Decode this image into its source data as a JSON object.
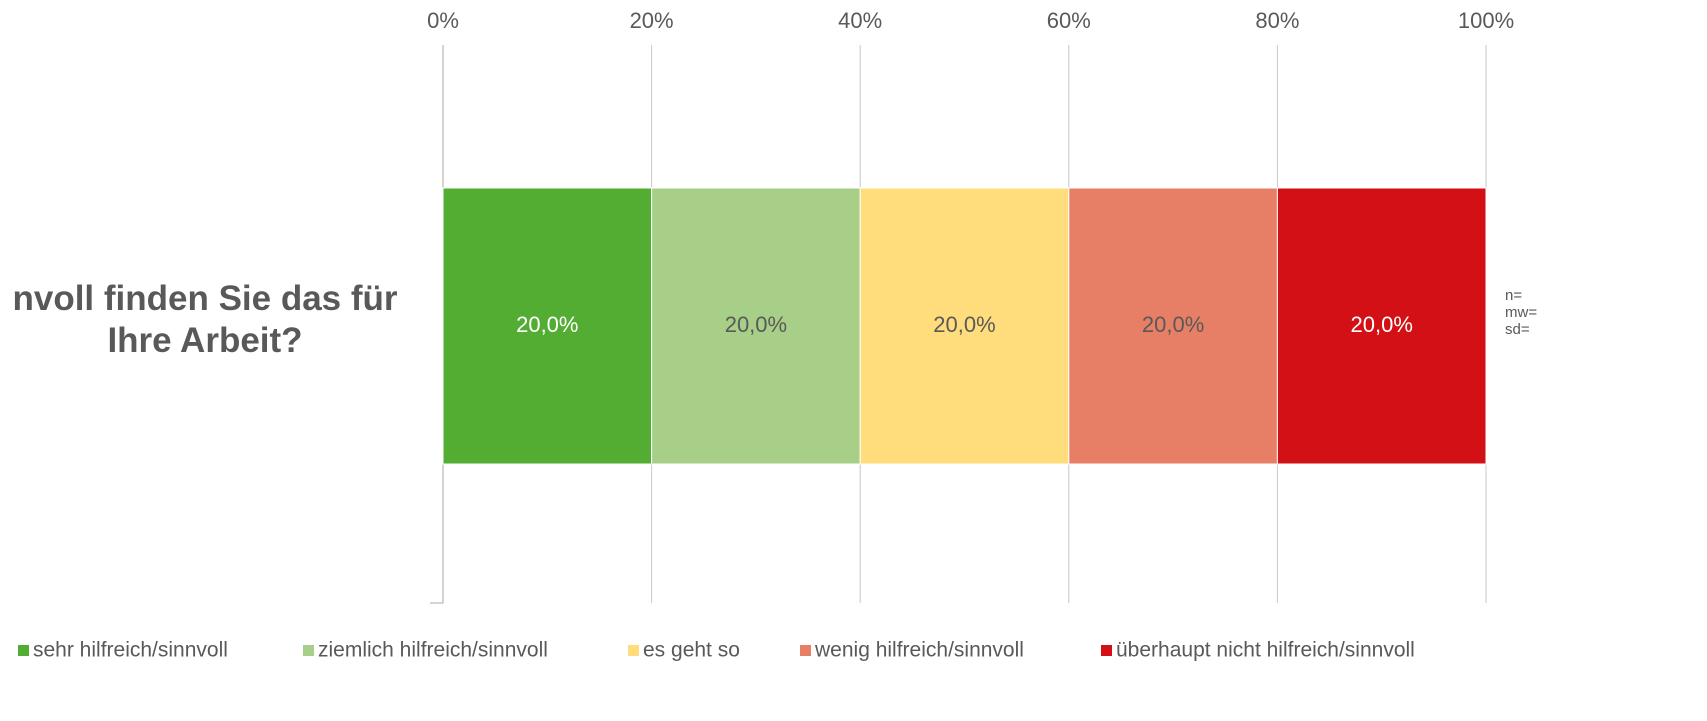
{
  "chart_data": {
    "type": "stacked_bar_horizontal",
    "categories": [
      "nvoll finden Sie das für Ihre Arbeit?"
    ],
    "series": [
      {
        "name": "sehr hilfreich/sinnvoll",
        "color": "#52ad32",
        "values": [
          20
        ],
        "value_labels": [
          "20,0%"
        ]
      },
      {
        "name": "ziemlich hilfreich/sinnvoll",
        "color": "#a8cf87",
        "values": [
          20
        ],
        "value_labels": [
          "20,0%"
        ]
      },
      {
        "name": "es geht so",
        "color": "#ffdd7d",
        "values": [
          20
        ],
        "value_labels": [
          "20,0%"
        ]
      },
      {
        "name": "wenig hilfreich/sinnvoll",
        "color": "#e67f66",
        "values": [
          20
        ],
        "value_labels": [
          "20,0%"
        ]
      },
      {
        "name": "überhaupt nicht hilfreich/sinnvoll",
        "color": "#d31016",
        "values": [
          20
        ],
        "value_labels": [
          "20,0%"
        ]
      }
    ],
    "xlim": [
      0,
      100
    ],
    "xticks": [
      {
        "value": 0,
        "label": "0%"
      },
      {
        "value": 20,
        "label": "20%"
      },
      {
        "value": 40,
        "label": "40%"
      },
      {
        "value": 60,
        "label": "60%"
      },
      {
        "value": 80,
        "label": "80%"
      },
      {
        "value": 100,
        "label": "100%"
      }
    ],
    "grid": true,
    "legend": "bottom",
    "notes": [
      "n=",
      "mw=",
      "sd="
    ]
  }
}
